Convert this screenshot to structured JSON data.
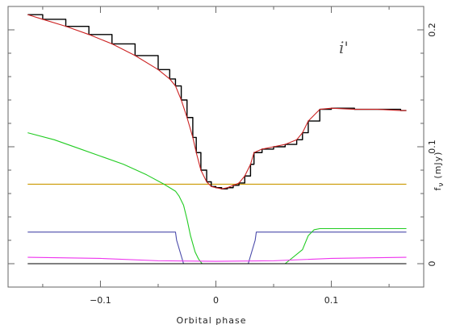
{
  "chart_data": {
    "type": "line",
    "band_label": "i'",
    "xlabel": "Orbital phase",
    "ylabel_symbol": "f",
    "ylabel_subscript": "ν",
    "ylabel_units": "(mJy)",
    "xlim": [
      -0.18,
      0.18
    ],
    "ylim": [
      -0.02,
      0.22
    ],
    "x_ticks": [
      -0.1,
      0,
      0.1
    ],
    "x_tick_labels": [
      "−0.1",
      "0",
      "0.1"
    ],
    "y_ticks": [
      0,
      0.1,
      0.2
    ],
    "y_tick_labels": [
      "0",
      "0.1",
      "0.2"
    ],
    "y_ticks_right_side": true,
    "x_minor_step": 0.05,
    "y_minor_step": 0.02,
    "colors": {
      "data": "#000000",
      "model_total": "#cc2222",
      "white_dwarf": "#4a4aaa",
      "bright_spot": "#22cc22",
      "disc": "#cc9900",
      "secondary": "#ee33ee"
    },
    "series": [
      {
        "key": "data",
        "style": "steps",
        "x": [
          -0.163,
          -0.15,
          -0.13,
          -0.11,
          -0.09,
          -0.07,
          -0.05,
          -0.04,
          -0.035,
          -0.03,
          -0.025,
          -0.02,
          -0.017,
          -0.013,
          -0.008,
          -0.004,
          0,
          0.005,
          0.01,
          0.015,
          0.02,
          0.025,
          0.03,
          0.033,
          0.04,
          0.05,
          0.06,
          0.07,
          0.075,
          0.08,
          0.09,
          0.1,
          0.12,
          0.14,
          0.16,
          0.165
        ],
        "y": [
          0.213,
          0.209,
          0.203,
          0.196,
          0.188,
          0.178,
          0.166,
          0.158,
          0.152,
          0.14,
          0.125,
          0.108,
          0.095,
          0.08,
          0.07,
          0.066,
          0.065,
          0.064,
          0.065,
          0.067,
          0.069,
          0.075,
          0.085,
          0.095,
          0.098,
          0.1,
          0.102,
          0.106,
          0.112,
          0.122,
          0.132,
          0.133,
          0.132,
          0.132,
          0.131,
          0.131
        ]
      },
      {
        "key": "model_total",
        "style": "line",
        "x": [
          -0.163,
          -0.15,
          -0.13,
          -0.11,
          -0.09,
          -0.07,
          -0.05,
          -0.04,
          -0.035,
          -0.03,
          -0.025,
          -0.02,
          -0.017,
          -0.013,
          -0.008,
          -0.004,
          0,
          0.005,
          0.01,
          0.015,
          0.02,
          0.025,
          0.03,
          0.033,
          0.04,
          0.05,
          0.06,
          0.07,
          0.075,
          0.08,
          0.09,
          0.1,
          0.12,
          0.14,
          0.16,
          0.165
        ],
        "y": [
          0.213,
          0.209,
          0.203,
          0.196,
          0.188,
          0.178,
          0.166,
          0.158,
          0.152,
          0.14,
          0.125,
          0.108,
          0.095,
          0.08,
          0.07,
          0.066,
          0.065,
          0.064,
          0.065,
          0.067,
          0.069,
          0.075,
          0.085,
          0.095,
          0.098,
          0.1,
          0.102,
          0.106,
          0.112,
          0.122,
          0.132,
          0.133,
          0.132,
          0.132,
          0.131,
          0.131
        ]
      },
      {
        "key": "bright_spot",
        "style": "line",
        "x": [
          -0.163,
          -0.14,
          -0.12,
          -0.1,
          -0.08,
          -0.06,
          -0.045,
          -0.035,
          -0.032,
          -0.028,
          -0.025,
          -0.022,
          -0.018,
          -0.015,
          -0.012,
          0,
          0.06,
          0.075,
          0.08,
          0.085,
          0.09,
          0.1,
          0.165
        ],
        "y": [
          0.112,
          0.106,
          0.099,
          0.092,
          0.085,
          0.076,
          0.068,
          0.062,
          0.058,
          0.05,
          0.038,
          0.024,
          0.01,
          0.004,
          0.0,
          0.0,
          0.0,
          0.012,
          0.024,
          0.029,
          0.03,
          0.03,
          0.03
        ]
      },
      {
        "key": "disc",
        "style": "line",
        "x": [
          -0.163,
          0.165
        ],
        "y": [
          0.068,
          0.068
        ]
      },
      {
        "key": "white_dwarf",
        "style": "line",
        "x": [
          -0.163,
          -0.035,
          -0.034,
          -0.031,
          -0.028,
          0.028,
          0.031,
          0.034,
          0.035,
          0.165
        ],
        "y": [
          0.027,
          0.027,
          0.02,
          0.01,
          0.0,
          0.0,
          0.01,
          0.02,
          0.027,
          0.027
        ]
      },
      {
        "key": "secondary",
        "style": "line",
        "x": [
          -0.163,
          -0.1,
          -0.05,
          0,
          0.05,
          0.1,
          0.165
        ],
        "y": [
          0.0055,
          0.0045,
          0.0025,
          0.002,
          0.0025,
          0.0045,
          0.0055
        ]
      },
      {
        "key": "residuals",
        "style": "steps",
        "x": [
          -0.163,
          0.165
        ],
        "y": [
          0,
          0
        ]
      }
    ]
  }
}
